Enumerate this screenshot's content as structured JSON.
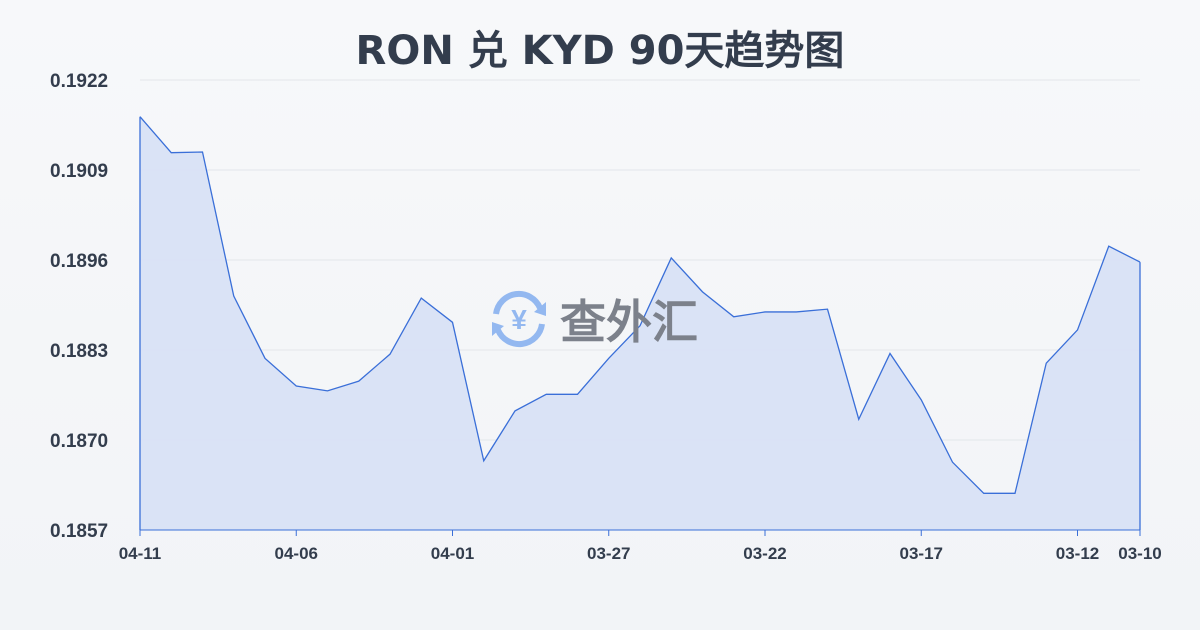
{
  "title": "RON 兑 KYD 90天趋势图",
  "watermark": "查外汇",
  "colors": {
    "line": "#3a6fd8",
    "fill": "#d8e2f5",
    "grid": "#e3e6ea",
    "text": "#333d4d"
  },
  "chart_data": {
    "type": "area",
    "title": "RON 兑 KYD 90天趋势图",
    "x": [
      "04-11",
      "04-10",
      "04-09",
      "04-08",
      "04-07",
      "04-06",
      "04-05",
      "04-04",
      "04-03",
      "04-02",
      "04-01",
      "03-31",
      "03-30",
      "03-29",
      "03-28",
      "03-27",
      "03-26",
      "03-25",
      "03-24",
      "03-23",
      "03-22",
      "03-21",
      "03-20",
      "03-19",
      "03-18",
      "03-17",
      "03-16",
      "03-15",
      "03-14",
      "03-13",
      "03-12",
      "03-11",
      "03-10"
    ],
    "values": [
      0.19167,
      0.19115,
      0.19116,
      0.18908,
      0.18818,
      0.18778,
      0.18771,
      0.18785,
      0.18824,
      0.18905,
      0.1887,
      0.1867,
      0.18742,
      0.18766,
      0.18766,
      0.18818,
      0.18865,
      0.18963,
      0.18914,
      0.18878,
      0.18885,
      0.18885,
      0.18889,
      0.1873,
      0.18825,
      0.18758,
      0.18668,
      0.18623,
      0.18623,
      0.18811,
      0.18859,
      0.1898,
      0.18957
    ],
    "xtick_labels": [
      "04-11",
      "04-06",
      "04-01",
      "03-27",
      "03-22",
      "03-17",
      "03-12",
      "03-10"
    ],
    "ytick_labels": [
      "0.1922",
      "0.1909",
      "0.1896",
      "0.1883",
      "0.1870",
      "0.1857"
    ],
    "ylim": [
      0.1857,
      0.1922
    ],
    "grid": true
  }
}
